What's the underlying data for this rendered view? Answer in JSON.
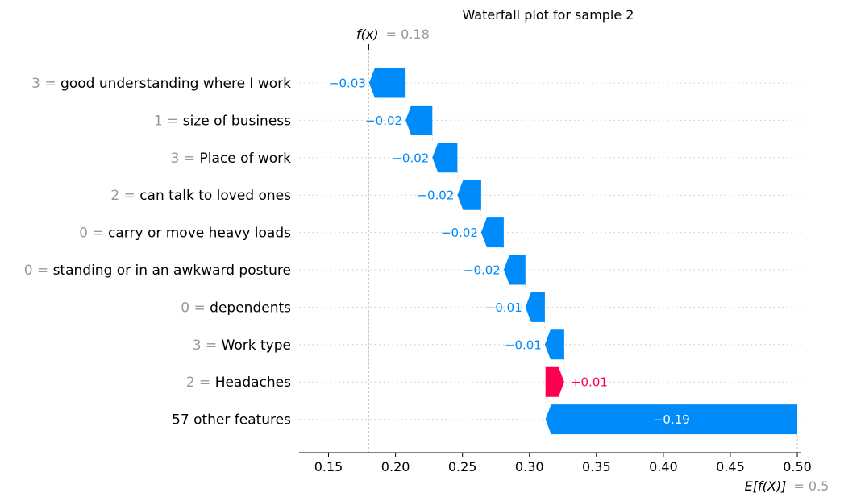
{
  "chart_data": {
    "type": "waterfall",
    "title": "Waterfall plot for sample 2",
    "fx_label": "f(x)",
    "fx_value_text": "= 0.18",
    "fx_value": 0.18,
    "efx_label": "E[f(X)]",
    "efx_value_text": "= 0.5",
    "base_value": 0.5,
    "xlim": [
      0.128,
      0.503
    ],
    "xticks": [
      0.15,
      0.2,
      0.25,
      0.3,
      0.35,
      0.4,
      0.45,
      0.5
    ],
    "xtick_labels": [
      "0.15",
      "0.20",
      "0.25",
      "0.30",
      "0.35",
      "0.40",
      "0.45",
      "0.50"
    ],
    "features": [
      {
        "value": "3",
        "eq": "=",
        "name": "good understanding where I work",
        "start": 0.2075,
        "end": 0.1803,
        "label": "−0.03"
      },
      {
        "value": "1",
        "eq": "=",
        "name": "size of business",
        "start": 0.2275,
        "end": 0.2075,
        "label": "−0.02"
      },
      {
        "value": "3",
        "eq": "=",
        "name": "Place of work",
        "start": 0.2462,
        "end": 0.2275,
        "label": "−0.02"
      },
      {
        "value": "2",
        "eq": "=",
        "name": "can talk to loved ones",
        "start": 0.264,
        "end": 0.2462,
        "label": "−0.02"
      },
      {
        "value": "0",
        "eq": "=",
        "name": "carry or move heavy loads",
        "start": 0.2808,
        "end": 0.264,
        "label": "−0.02"
      },
      {
        "value": "0",
        "eq": "=",
        "name": "standing or in an awkward posture",
        "start": 0.297,
        "end": 0.2808,
        "label": "−0.02"
      },
      {
        "value": "0",
        "eq": "=",
        "name": "dependents",
        "start": 0.3115,
        "end": 0.297,
        "label": "−0.01"
      },
      {
        "value": "3",
        "eq": "=",
        "name": "Work type",
        "start": 0.326,
        "end": 0.3115,
        "label": "−0.01"
      },
      {
        "value": "2",
        "eq": "=",
        "name": "Headaches",
        "start": 0.312,
        "end": 0.326,
        "label": "+0.01"
      },
      {
        "value": "",
        "eq": "",
        "name": "57 other features",
        "start": 0.5,
        "end": 0.312,
        "label": "−0.19"
      }
    ],
    "colors": {
      "negative": "#008bfb",
      "positive": "#ff0051",
      "feature_value": "#999999",
      "gridline": "#cccccc"
    }
  }
}
